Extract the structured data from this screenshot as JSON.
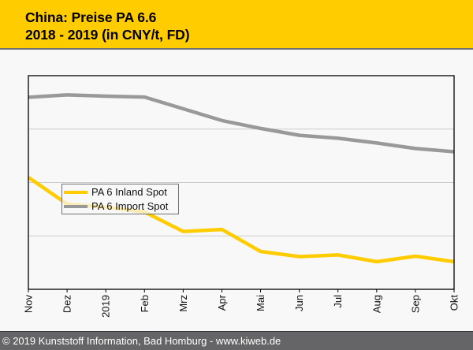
{
  "header": {
    "title_line1": "China: Preise PA 6.6",
    "title_line2": "2018 - 2019 (in CNY/t, FD)"
  },
  "colors": {
    "header_bg": "#FFCC00",
    "inland": "#FFCC00",
    "import": "#999999",
    "footer_bg": "#656567"
  },
  "chart_data": {
    "type": "line",
    "title": "China: Preise PA 6.6 2018 - 2019 (in CNY/t, FD)",
    "xlabel": "",
    "ylabel": "",
    "y_units_note": "relative units (no y-axis tick labels shown); 0 = plot bottom, 100 = plot top",
    "ylim": [
      0,
      100
    ],
    "gridlines": [
      25,
      50,
      75
    ],
    "grid": true,
    "legend_position": "center-left",
    "categories": [
      "Nov",
      "Dez",
      "2019",
      "Feb",
      "Mrz",
      "Apr",
      "Mai",
      "Jun",
      "Jul",
      "Aug",
      "Sep",
      "Okt"
    ],
    "series": [
      {
        "name": "PA 6 Inland Spot",
        "color": "#FFCC00",
        "values": [
          52.4,
          39.9,
          38.4,
          36.2,
          27.1,
          28.0,
          17.7,
          15.3,
          16.1,
          12.9,
          15.5,
          12.9
        ]
      },
      {
        "name": "PA 6 Import Spot",
        "color": "#999999",
        "values": [
          89.9,
          91.0,
          90.4,
          90.0,
          84.5,
          79.0,
          75.3,
          72.1,
          70.7,
          68.5,
          65.9,
          64.4
        ]
      }
    ]
  },
  "footer": {
    "text": "© 2019 Kunststoff Information, Bad Homburg - www.kiweb.de"
  }
}
